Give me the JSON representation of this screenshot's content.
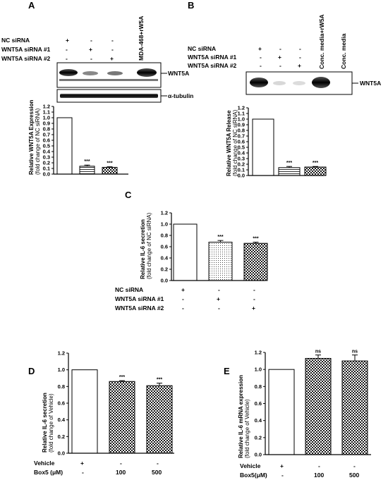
{
  "panels": {
    "A": {
      "letter": "A",
      "conditions": [
        {
          "label": "NC siRNA",
          "marks": [
            "+",
            "-",
            "-"
          ]
        },
        {
          "label": "WNT5A siRNA #1",
          "marks": [
            "-",
            "+",
            "-"
          ]
        },
        {
          "label": "WNT5A siRNA #2",
          "marks": [
            "-",
            "-",
            "+"
          ]
        }
      ],
      "extra_lane_label": "MDA-468+rW5A",
      "blot_labels": [
        "WNT5A",
        "α-tubulin"
      ],
      "ylabel_line1": "Relative WNT5A Expression",
      "ylabel_line2": "(fold change of NC siRNA)"
    },
    "B": {
      "letter": "B",
      "conditions": [
        {
          "label": "NC siRNA",
          "marks": [
            "+",
            "-",
            "-"
          ]
        },
        {
          "label": "WNT5A siRNA #1",
          "marks": [
            "-",
            "+",
            "-"
          ]
        },
        {
          "label": "WNT5A siRNA #2",
          "marks": [
            "-",
            "-",
            "+"
          ]
        }
      ],
      "extra_lane_labels": [
        "Conc. media+rW5A",
        "Conc. media"
      ],
      "blot_labels": [
        "WNT5A"
      ],
      "ylabel_line1": "Relative WNT5A Release",
      "ylabel_line2": "(fold change of NC siRNA)"
    },
    "C": {
      "letter": "C",
      "conditions": [
        {
          "label": "NC siRNA",
          "marks": [
            "+",
            "-",
            "-"
          ]
        },
        {
          "label": "WNT5A siRNA #1",
          "marks": [
            "-",
            "+",
            "-"
          ]
        },
        {
          "label": "WNT5A siRNA #2",
          "marks": [
            "-",
            "-",
            "+"
          ]
        }
      ],
      "ylabel_line1": "Relative IL-6 secretion",
      "ylabel_line2": "(fold change of NC siRNA)"
    },
    "D": {
      "letter": "D",
      "conditions": [
        {
          "label": "Vehicle",
          "marks": [
            "+",
            "-",
            "-"
          ]
        },
        {
          "label": "Box5 (μM)",
          "marks": [
            "-",
            "100",
            "500"
          ]
        }
      ],
      "ylabel_line1": "Relative IL-6 secretion",
      "ylabel_line2": "(fold change of Vehicle)"
    },
    "E": {
      "letter": "E",
      "conditions": [
        {
          "label": "Vehicle",
          "marks": [
            "+",
            "-",
            "-"
          ]
        },
        {
          "label": "Box5(μM)",
          "marks": [
            "-",
            "100",
            "500"
          ]
        }
      ],
      "ylabel_line1": "Relative IL-6 mRNA expression",
      "ylabel_line2": "(fold change of Vehicle)"
    }
  },
  "chart_data": [
    {
      "panel": "A",
      "type": "bar",
      "values": [
        1.0,
        0.14,
        0.12
      ],
      "errors": [
        0,
        0.02,
        0.01
      ],
      "significance": [
        "",
        "***",
        "***"
      ],
      "patterns": [
        "white",
        "stripes",
        "checker"
      ],
      "ylim": [
        0,
        1.2
      ],
      "yticks": [
        "0.0",
        "0.1",
        "0.2",
        "0.3",
        "0.4",
        "0.5",
        "0.6",
        "0.7",
        "0.8",
        "0.9",
        "1.0",
        "1.1",
        "1.2"
      ]
    },
    {
      "panel": "B",
      "type": "bar",
      "values": [
        1.0,
        0.14,
        0.15
      ],
      "errors": [
        0,
        0.02,
        0.01
      ],
      "significance": [
        "",
        "***",
        "***"
      ],
      "patterns": [
        "white",
        "stripes",
        "checker"
      ],
      "ylim": [
        0,
        1.2
      ],
      "yticks": [
        "0.0",
        "0.1",
        "0.2",
        "0.3",
        "0.4",
        "0.5",
        "0.6",
        "0.7",
        "0.8",
        "0.9",
        "1.0",
        "1.1",
        "1.2"
      ]
    },
    {
      "panel": "C",
      "type": "bar",
      "values": [
        1.0,
        0.68,
        0.66
      ],
      "errors": [
        0,
        0.03,
        0.02
      ],
      "significance": [
        "",
        "***",
        "***"
      ],
      "patterns": [
        "white",
        "dots",
        "checker"
      ],
      "ylim": [
        0,
        1.2
      ],
      "yticks": [
        "0.0",
        "0.2",
        "0.4",
        "0.6",
        "0.8",
        "1.0",
        "1.2"
      ]
    },
    {
      "panel": "D",
      "type": "bar",
      "values": [
        1.0,
        0.86,
        0.81
      ],
      "errors": [
        0,
        0.01,
        0.03
      ],
      "significance": [
        "",
        "***",
        "***"
      ],
      "patterns": [
        "white",
        "checker",
        "checker"
      ],
      "ylim": [
        0,
        1.2
      ],
      "yticks": [
        "0.0",
        "0.2",
        "0.4",
        "0.6",
        "0.8",
        "1.0",
        "1.2"
      ]
    },
    {
      "panel": "E",
      "type": "bar",
      "values": [
        1.0,
        1.13,
        1.1
      ],
      "errors": [
        0,
        0.04,
        0.07
      ],
      "significance": [
        "",
        "ns",
        "ns"
      ],
      "patterns": [
        "white",
        "checker",
        "checker"
      ],
      "ylim": [
        0,
        1.2
      ],
      "yticks": [
        "0.0",
        "0.2",
        "0.4",
        "0.6",
        "0.8",
        "1.0",
        "1.2"
      ]
    }
  ]
}
